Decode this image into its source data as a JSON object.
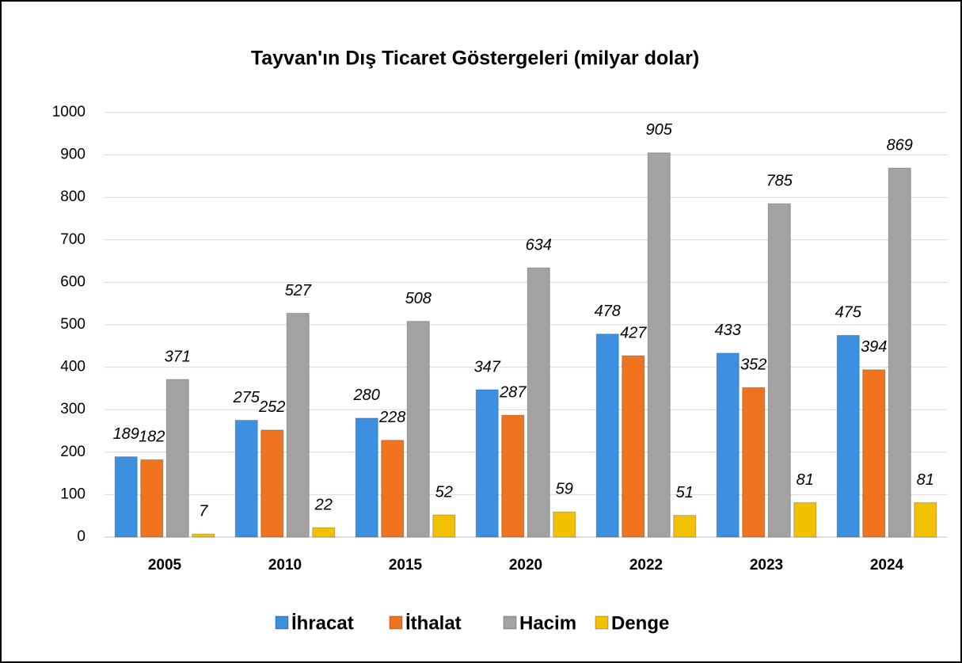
{
  "chart_data": {
    "type": "bar",
    "title": "Tayvan'ın Dış Ticaret Göstergeleri (milyar dolar)",
    "categories": [
      "2005",
      "2010",
      "2015",
      "2020",
      "2022",
      "2023",
      "2024"
    ],
    "series": [
      {
        "name": "İhracat",
        "color": "#3d8fe0",
        "values": [
          189,
          275,
          280,
          347,
          478,
          433,
          475
        ]
      },
      {
        "name": "İthalat",
        "color": "#ee7420",
        "values": [
          182,
          252,
          228,
          287,
          427,
          352,
          394
        ]
      },
      {
        "name": "Hacim",
        "color": "#a3a3a3",
        "values": [
          371,
          527,
          508,
          634,
          905,
          785,
          869
        ]
      },
      {
        "name": "Denge",
        "color": "#f2c200",
        "values": [
          7,
          22,
          52,
          59,
          51,
          81,
          81
        ]
      }
    ],
    "ylim": [
      0,
      1000
    ],
    "yticks": [
      0,
      100,
      200,
      300,
      400,
      500,
      600,
      700,
      800,
      900,
      1000
    ],
    "grid": true,
    "legend": "bottom"
  }
}
